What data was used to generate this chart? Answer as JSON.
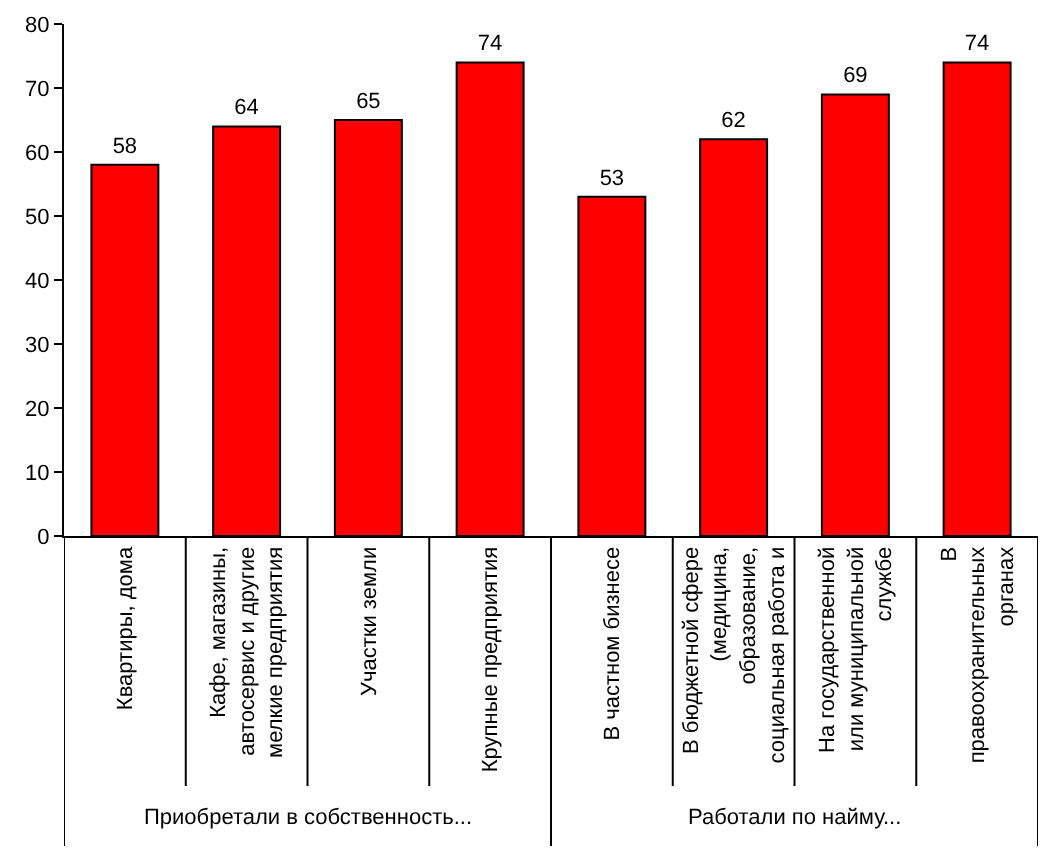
{
  "chart_data": {
    "type": "bar",
    "categories": [
      "Квартиры, дома",
      "Кафе, магазины, автосервис и другие мелкие предприятия",
      "Участки земли",
      "Крупные предприятия",
      "В частном бизнесе",
      "В бюджетной сфере (медицина, образование, социальная работа и",
      "На государственной или муниципальной службе",
      "В правоохранительных органах"
    ],
    "values": [
      58,
      64,
      65,
      74,
      53,
      62,
      69,
      74
    ],
    "color": "#ff0000",
    "data_labels": true,
    "ylim": [
      0,
      80
    ],
    "yticks": [
      0,
      10,
      20,
      30,
      40,
      50,
      60,
      70,
      80
    ],
    "annotations": [
      "Приобретали в собственность...",
      "Работали по найму..."
    ]
  }
}
